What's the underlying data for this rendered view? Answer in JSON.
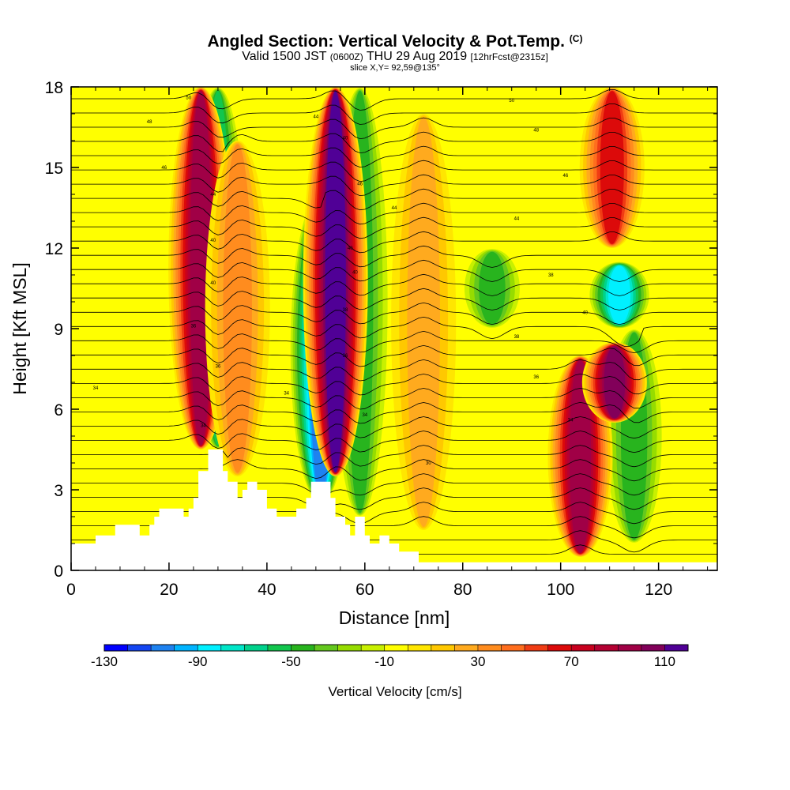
{
  "title": {
    "main": "Angled Section: Vertical Velocity & Pot.Temp.",
    "main_suffix": "(C)",
    "valid_prefix": "Valid 1500 JST",
    "valid_zulu": "(0600Z)",
    "valid_date": "THU 29 Aug 2019",
    "forecast": "[12hrFcst@2315z]",
    "slice": "slice X,Y= 92,59@135°"
  },
  "chart_data": {
    "type": "heatmap",
    "xlabel": "Distance [nm]",
    "ylabel": "Height [Kft MSL]",
    "xlim": [
      0,
      132
    ],
    "ylim": [
      0,
      18
    ],
    "x_ticks": [
      0,
      20,
      40,
      60,
      80,
      100,
      120
    ],
    "y_ticks": [
      0,
      3,
      6,
      9,
      12,
      15,
      18
    ],
    "colorbar": {
      "label": "Vertical Velocity [cm/s]",
      "tick_labels": [
        -130,
        -90,
        -50,
        -10,
        30,
        70,
        110
      ],
      "levels_from": -130,
      "level_step": 10,
      "colors": [
        "#0000ff",
        "#1446f2",
        "#1e82f0",
        "#00b4ff",
        "#00f0ff",
        "#00e6c8",
        "#00d28c",
        "#12c64e",
        "#28b41e",
        "#64c81e",
        "#96dc00",
        "#c8f000",
        "#ffff00",
        "#ffe600",
        "#ffc800",
        "#ffaa1e",
        "#ff8c1e",
        "#ff6e1e",
        "#f03c14",
        "#dc0a0a",
        "#c8001e",
        "#b40032",
        "#a00046",
        "#82005a",
        "#500096"
      ]
    },
    "background_level": -10,
    "updraft_columns": [
      {
        "x": 26.5,
        "y_top": 18,
        "y_bottom": 4.5,
        "peak": 90
      },
      {
        "x": 34,
        "y_top": 16,
        "y_bottom": 3.5,
        "peak": 30
      },
      {
        "x": 54,
        "y_top": 18,
        "y_bottom": 3.5,
        "peak": 110
      },
      {
        "x": 72,
        "y_top": 17,
        "y_bottom": 1.5,
        "peak": 20
      },
      {
        "x": 104,
        "y_top": 8,
        "y_bottom": 0.5,
        "peak": 90
      },
      {
        "x": 110.5,
        "y_top": 18,
        "y_bottom": 12,
        "peak": 60
      },
      {
        "x": 111,
        "y_top": 8.5,
        "y_bottom": 5.5,
        "peak": 100
      }
    ],
    "downdraft_columns": [
      {
        "x": 51,
        "y_top": 14,
        "y_bottom": 2.5,
        "peak": -100
      },
      {
        "x": 30,
        "y_top": 18,
        "y_bottom": 4.5,
        "peak": -50
      },
      {
        "x": 59,
        "y_top": 18,
        "y_bottom": 2.0,
        "peak": -40
      },
      {
        "x": 112,
        "y_top": 11.5,
        "y_bottom": 9,
        "peak": -80
      },
      {
        "x": 86,
        "y_top": 12,
        "y_bottom": 9,
        "peak": -40
      },
      {
        "x": 115,
        "y_top": 9,
        "y_bottom": 1,
        "peak": -40
      }
    ],
    "terrain_profile": [
      [
        0,
        0.3
      ],
      [
        0,
        1.0
      ],
      [
        5,
        1.0
      ],
      [
        5,
        1.3
      ],
      [
        9,
        1.3
      ],
      [
        9,
        1.7
      ],
      [
        14,
        1.7
      ],
      [
        14,
        1.3
      ],
      [
        16,
        1.3
      ],
      [
        16,
        1.7
      ],
      [
        17,
        1.7
      ],
      [
        17,
        2.0
      ],
      [
        18,
        2.0
      ],
      [
        18,
        2.3
      ],
      [
        23,
        2.3
      ],
      [
        23,
        2.0
      ],
      [
        24,
        2.0
      ],
      [
        24,
        2.3
      ],
      [
        25,
        2.3
      ],
      [
        25,
        2.7
      ],
      [
        26,
        2.7
      ],
      [
        26,
        3.7
      ],
      [
        28,
        3.7
      ],
      [
        28,
        4.5
      ],
      [
        31,
        4.5
      ],
      [
        31,
        3.7
      ],
      [
        32,
        3.7
      ],
      [
        32,
        3.3
      ],
      [
        34,
        3.3
      ],
      [
        34,
        2.7
      ],
      [
        35,
        2.7
      ],
      [
        35,
        3.0
      ],
      [
        36,
        3.0
      ],
      [
        36,
        3.3
      ],
      [
        38,
        3.3
      ],
      [
        38,
        3.0
      ],
      [
        40,
        3.0
      ],
      [
        40,
        2.3
      ],
      [
        42,
        2.3
      ],
      [
        42,
        2.0
      ],
      [
        46,
        2.0
      ],
      [
        46,
        2.3
      ],
      [
        48,
        2.3
      ],
      [
        48,
        2.7
      ],
      [
        49,
        2.7
      ],
      [
        49,
        3.3
      ],
      [
        53,
        3.3
      ],
      [
        53,
        2.7
      ],
      [
        54,
        2.7
      ],
      [
        54,
        2.0
      ],
      [
        56,
        2.0
      ],
      [
        56,
        1.7
      ],
      [
        57,
        1.7
      ],
      [
        57,
        1.3
      ],
      [
        58,
        1.3
      ],
      [
        58,
        2.0
      ],
      [
        60,
        2.0
      ],
      [
        60,
        1.3
      ],
      [
        61,
        1.3
      ],
      [
        61,
        1.0
      ],
      [
        63,
        1.0
      ],
      [
        63,
        1.3
      ],
      [
        65,
        1.3
      ],
      [
        65,
        1.0
      ],
      [
        67,
        1.0
      ],
      [
        67,
        0.7
      ],
      [
        71,
        0.7
      ],
      [
        71,
        0.3
      ],
      [
        132,
        0.3
      ]
    ],
    "theta_contour_labels": [
      {
        "x": 24,
        "y": 17.6,
        "text": "50"
      },
      {
        "x": 16,
        "y": 16.7,
        "text": "48"
      },
      {
        "x": 19,
        "y": 15.0,
        "text": "46"
      },
      {
        "x": 29,
        "y": 14.0,
        "text": "44"
      },
      {
        "x": 29,
        "y": 12.3,
        "text": "40"
      },
      {
        "x": 29,
        "y": 10.7,
        "text": "40"
      },
      {
        "x": 25,
        "y": 9.1,
        "text": "36"
      },
      {
        "x": 30,
        "y": 7.6,
        "text": "36"
      },
      {
        "x": 5,
        "y": 6.8,
        "text": "34"
      },
      {
        "x": 27,
        "y": 5.4,
        "text": "34"
      },
      {
        "x": 50,
        "y": 16.9,
        "text": "44"
      },
      {
        "x": 56,
        "y": 16.1,
        "text": "40"
      },
      {
        "x": 59,
        "y": 14.4,
        "text": "46"
      },
      {
        "x": 66,
        "y": 13.5,
        "text": "44"
      },
      {
        "x": 57,
        "y": 12.0,
        "text": "40"
      },
      {
        "x": 58,
        "y": 11.1,
        "text": "40"
      },
      {
        "x": 56,
        "y": 9.7,
        "text": "38"
      },
      {
        "x": 56,
        "y": 8.0,
        "text": "36"
      },
      {
        "x": 44,
        "y": 6.6,
        "text": "34"
      },
      {
        "x": 60,
        "y": 5.8,
        "text": "34"
      },
      {
        "x": 73,
        "y": 4.0,
        "text": "30"
      },
      {
        "x": 90,
        "y": 17.5,
        "text": "50"
      },
      {
        "x": 95,
        "y": 16.4,
        "text": "48"
      },
      {
        "x": 101,
        "y": 14.7,
        "text": "46"
      },
      {
        "x": 91,
        "y": 13.1,
        "text": "44"
      },
      {
        "x": 98,
        "y": 11.0,
        "text": "38"
      },
      {
        "x": 105,
        "y": 9.6,
        "text": "40"
      },
      {
        "x": 91,
        "y": 8.7,
        "text": "38"
      },
      {
        "x": 95,
        "y": 7.2,
        "text": "36"
      },
      {
        "x": 102,
        "y": 5.6,
        "text": "34"
      }
    ]
  }
}
